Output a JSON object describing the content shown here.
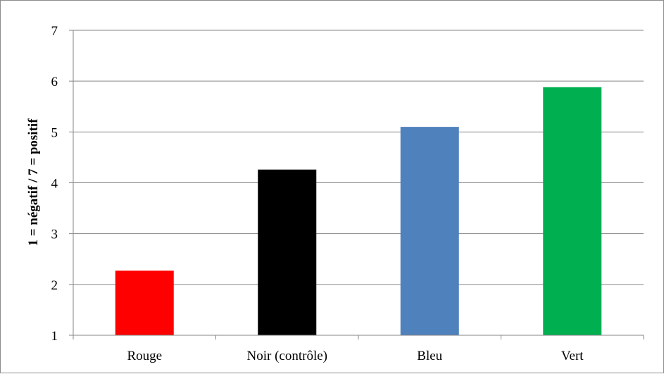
{
  "chart_data": {
    "type": "bar",
    "title": "",
    "xlabel": "",
    "ylabel": "1 = négatif / 7 = positif",
    "categories": [
      "Rouge",
      "Noir (contrôle)",
      "Bleu",
      "Vert"
    ],
    "values": [
      2.27,
      4.26,
      5.1,
      5.88
    ],
    "colors": [
      "#ff0000",
      "#000000",
      "#4f81bd",
      "#00b050"
    ],
    "ylim": [
      1,
      7
    ],
    "yticks": [
      1,
      2,
      3,
      4,
      5,
      6,
      7
    ],
    "grid": true,
    "legend": "none"
  }
}
